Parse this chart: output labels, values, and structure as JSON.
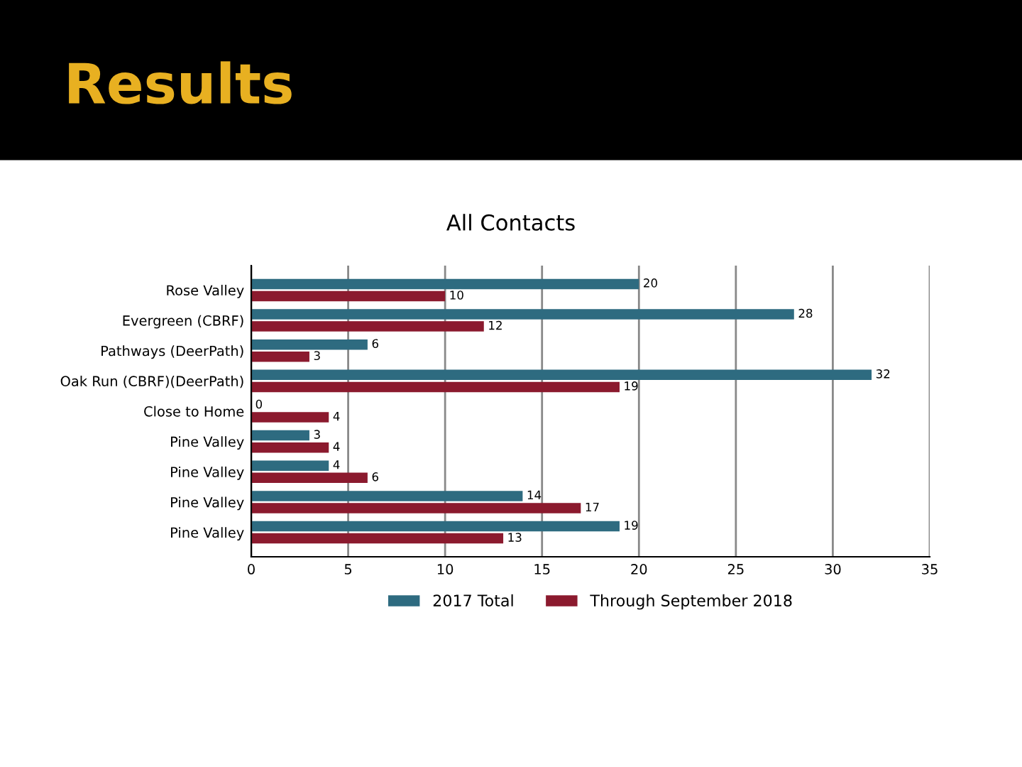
{
  "chart_data": {
    "type": "bar",
    "orientation": "horizontal",
    "title": "Results",
    "subtitle": "All Contacts",
    "categories": [
      "Rose Valley",
      "Evergreen (CBRF)",
      "Pathways (DeerPath)",
      "Oak Run (CBRF)(DeerPath)",
      "Close to Home",
      "Pine Valley",
      "Pine Valley",
      "Pine Valley",
      "Pine Valley"
    ],
    "series": [
      {
        "name": "2017 Total",
        "color": "#2e6b80",
        "values": [
          20,
          28,
          6,
          32,
          0,
          3,
          4,
          14,
          19
        ]
      },
      {
        "name": "Through September 2018",
        "color": "#8b1a2e",
        "values": [
          10,
          12,
          3,
          19,
          4,
          4,
          6,
          17,
          13
        ]
      }
    ],
    "xlim": [
      0,
      35
    ],
    "xticks": [
      0,
      5,
      10,
      15,
      20,
      25,
      30,
      35
    ],
    "grid": "x",
    "data_labels": true,
    "legend": "bottom"
  }
}
